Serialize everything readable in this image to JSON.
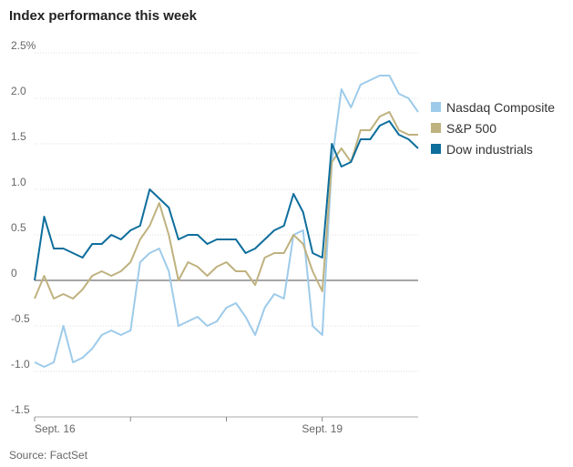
{
  "chart_data": {
    "type": "line",
    "title": "Index performance this week",
    "source": "Source: FactSet",
    "x": [
      0,
      0.1,
      0.2,
      0.3,
      0.4,
      0.5,
      0.6,
      0.7,
      0.8,
      0.9,
      1,
      1.1,
      1.2,
      1.3,
      1.4,
      1.5,
      1.6,
      1.7,
      1.8,
      1.9,
      2,
      2.1,
      2.2,
      2.3,
      2.4,
      2.5,
      2.6,
      2.7,
      2.8,
      2.9,
      3,
      3.1,
      3.2,
      3.3,
      3.4,
      3.5,
      3.6,
      3.7,
      3.8,
      3.9,
      4
    ],
    "series": [
      {
        "name": "Nasdaq Composite",
        "color": "#9ecbea",
        "values": [
          -0.9,
          -0.95,
          -0.9,
          -0.5,
          -0.9,
          -0.85,
          -0.75,
          -0.6,
          -0.55,
          -0.6,
          -0.55,
          0.2,
          0.3,
          0.35,
          0.1,
          -0.5,
          -0.45,
          -0.4,
          -0.5,
          -0.45,
          -0.3,
          -0.25,
          -0.4,
          -0.6,
          -0.3,
          -0.15,
          -0.2,
          0.5,
          0.55,
          -0.5,
          -0.6,
          1.3,
          2.1,
          1.9,
          2.15,
          2.2,
          2.25,
          2.25,
          2.05,
          2.0,
          1.85
        ]
      },
      {
        "name": "S&P 500",
        "color": "#bfb27f",
        "values": [
          -0.2,
          0.05,
          -0.2,
          -0.15,
          -0.2,
          -0.1,
          0.05,
          0.1,
          0.05,
          0.1,
          0.2,
          0.45,
          0.6,
          0.85,
          0.5,
          0.0,
          0.2,
          0.15,
          0.05,
          0.15,
          0.2,
          0.1,
          0.1,
          -0.05,
          0.25,
          0.3,
          0.3,
          0.5,
          0.4,
          0.1,
          -0.12,
          1.3,
          1.45,
          1.3,
          1.65,
          1.65,
          1.8,
          1.85,
          1.65,
          1.6,
          1.6
        ]
      },
      {
        "name": "Dow industrials",
        "color": "#0e6e9c",
        "values": [
          0.0,
          0.7,
          0.35,
          0.35,
          0.3,
          0.25,
          0.4,
          0.4,
          0.5,
          0.45,
          0.55,
          0.6,
          1.0,
          0.9,
          0.8,
          0.45,
          0.5,
          0.5,
          0.4,
          0.45,
          0.45,
          0.45,
          0.3,
          0.35,
          0.45,
          0.55,
          0.6,
          0.95,
          0.75,
          0.3,
          0.25,
          1.5,
          1.25,
          1.3,
          1.55,
          1.55,
          1.7,
          1.75,
          1.6,
          1.55,
          1.45
        ]
      }
    ],
    "xlim": [
      0,
      4
    ],
    "xticks": [
      {
        "value": 0,
        "label": "Sept. 16"
      },
      {
        "value": 3,
        "label": "Sept. 19"
      }
    ],
    "xminor_ticks": [
      1,
      2
    ],
    "ylim": [
      -1.5,
      2.5
    ],
    "yticks": [
      {
        "value": 2.5,
        "label": "2.5%"
      },
      {
        "value": 2,
        "label": "2.0"
      },
      1.5,
      {
        "value": 1,
        "label": "1.0"
      },
      0.5,
      0,
      -0.5,
      {
        "value": -1,
        "label": "-1.0"
      },
      -1.5
    ],
    "grid": true,
    "legend": "right"
  }
}
